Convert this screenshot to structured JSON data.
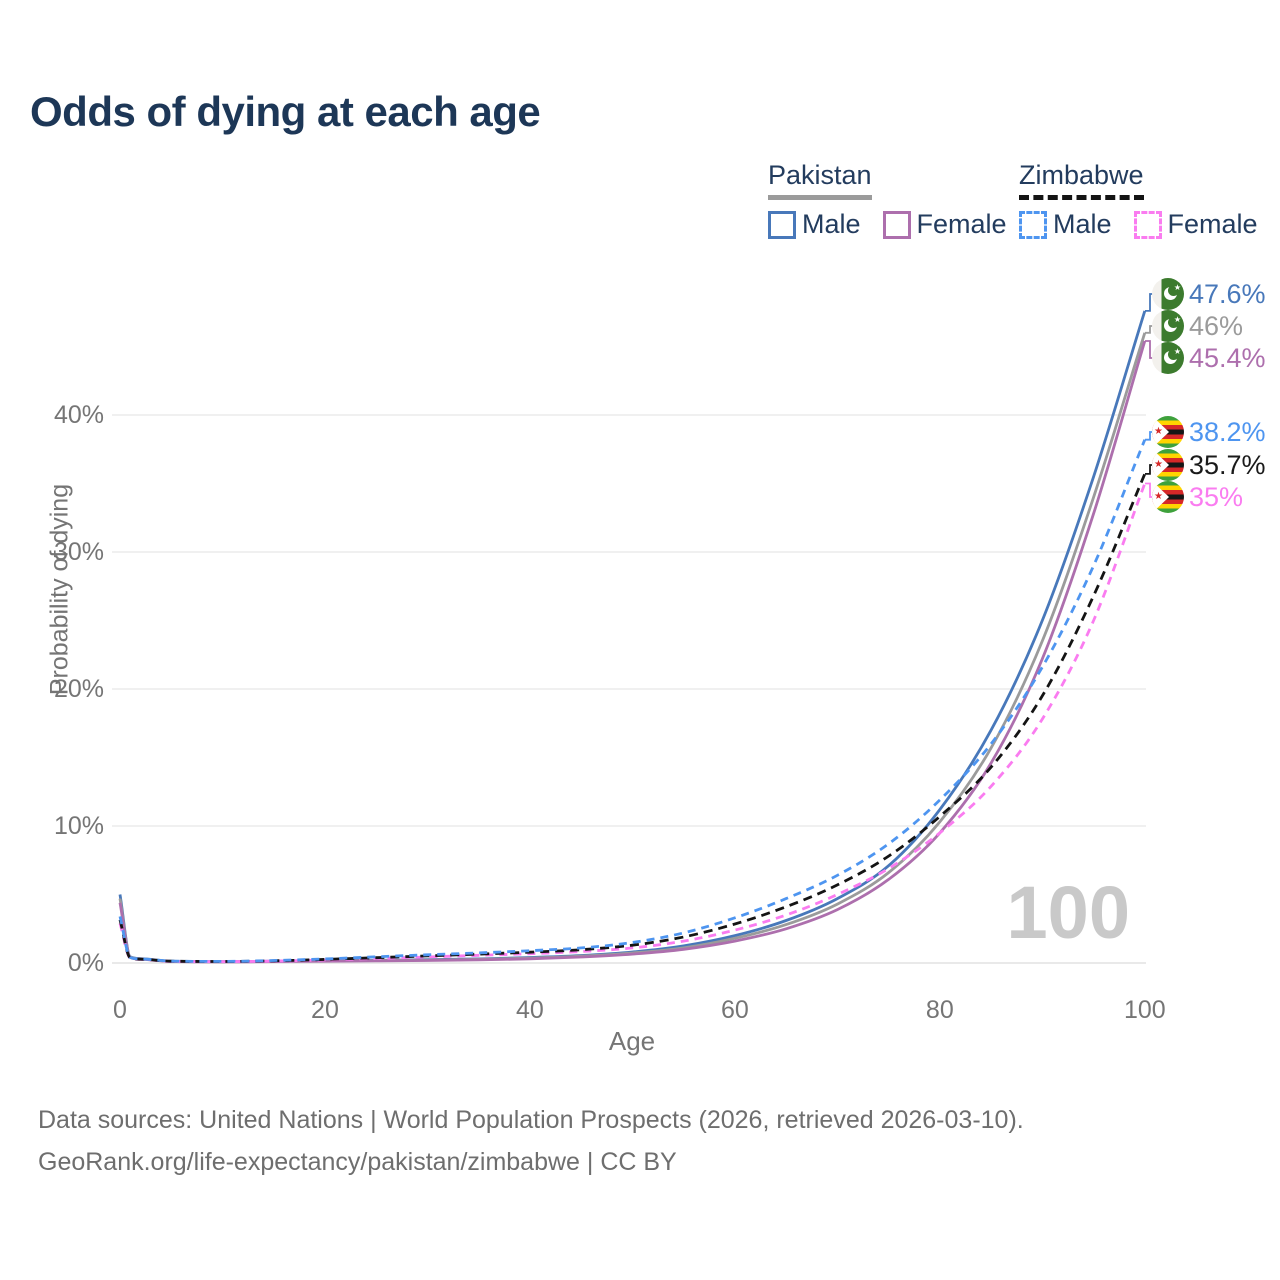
{
  "title": "Odds of dying at each age",
  "legend": {
    "groups": [
      {
        "label": "Pakistan",
        "line_style": "solid",
        "color": "#9b9b9b",
        "items": [
          {
            "label": "Male",
            "color": "#4878ba"
          },
          {
            "label": "Female",
            "color": "#ad6fad"
          }
        ]
      },
      {
        "label": "Zimbabwe",
        "line_style": "dashed",
        "color": "#141414",
        "items": [
          {
            "label": "Male",
            "color": "#4e95f0"
          },
          {
            "label": "Female",
            "color": "#fa7cf0"
          }
        ]
      }
    ]
  },
  "axes": {
    "x": {
      "label": "Age",
      "tick_labels": [
        "0",
        "20",
        "40",
        "60",
        "80",
        "100"
      ],
      "range": [
        0,
        100
      ]
    },
    "y": {
      "label": "Probability of dying",
      "tick_labels": [
        "0%",
        "10%",
        "20%",
        "30%",
        "40%"
      ],
      "range": [
        0,
        48
      ]
    }
  },
  "watermark": "100",
  "end_labels": [
    {
      "text": "47.6%",
      "series": "Pakistan Male",
      "flag": "pakistan",
      "color": "#4878ba"
    },
    {
      "text": "46%",
      "series": "Pakistan Both sexes",
      "flag": "pakistan",
      "color": "#9b9b9b"
    },
    {
      "text": "45.4%",
      "series": "Pakistan Female",
      "flag": "pakistan",
      "color": "#ad6fad"
    },
    {
      "text": "38.2%",
      "series": "Zimbabwe Male",
      "flag": "zimbabwe",
      "color": "#4e95f0"
    },
    {
      "text": "35.7%",
      "series": "Zimbabwe Both sexes",
      "flag": "zimbabwe",
      "color": "#1a1a1a"
    },
    {
      "text": "35%",
      "series": "Zimbabwe Female",
      "flag": "zimbabwe",
      "color": "#fa7cf0"
    }
  ],
  "footer": {
    "line1": "Data sources: United Nations | World Population Prospects (2026, retrieved 2026-03-10).",
    "line2": "GeoRank.org/life-expectancy/pakistan/zimbabwe | CC BY"
  },
  "chart_data": {
    "type": "line",
    "title": "Odds of dying at each age",
    "xlabel": "Age",
    "ylabel": "Probability of dying",
    "x_range": [
      0,
      100
    ],
    "y_range_pct": [
      0,
      48
    ],
    "grid": "horizontal",
    "legend_position": "top-right",
    "ages": [
      0,
      1,
      2,
      5,
      10,
      15,
      20,
      25,
      30,
      35,
      40,
      45,
      50,
      55,
      60,
      65,
      70,
      75,
      80,
      85,
      90,
      95,
      100
    ],
    "series": [
      {
        "name": "Pakistan Male",
        "country": "Pakistan",
        "sex": "Male",
        "style": "solid",
        "color": "#4878ba",
        "end_label": "47.6%",
        "values_pct": [
          5.0,
          0.45,
          0.32,
          0.13,
          0.1,
          0.13,
          0.17,
          0.2,
          0.24,
          0.3,
          0.4,
          0.55,
          0.8,
          1.25,
          2.0,
          3.1,
          4.7,
          7.1,
          11.2,
          17.0,
          25.0,
          35.5,
          47.6
        ]
      },
      {
        "name": "Pakistan Both sexes",
        "country": "Pakistan",
        "sex": "Both",
        "style": "solid",
        "color": "#9b9b9b",
        "end_label": "46%",
        "values_pct": [
          4.7,
          0.42,
          0.3,
          0.12,
          0.09,
          0.12,
          0.15,
          0.18,
          0.21,
          0.27,
          0.36,
          0.5,
          0.73,
          1.1,
          1.8,
          2.8,
          4.3,
          6.6,
          10.3,
          15.7,
          23.5,
          34.0,
          46.0
        ]
      },
      {
        "name": "Pakistan Female",
        "country": "Pakistan",
        "sex": "Female",
        "style": "solid",
        "color": "#ad6fad",
        "end_label": "45.4%",
        "values_pct": [
          4.4,
          0.4,
          0.28,
          0.11,
          0.08,
          0.1,
          0.13,
          0.15,
          0.18,
          0.23,
          0.31,
          0.44,
          0.65,
          1.0,
          1.6,
          2.5,
          3.9,
          6.1,
          9.5,
          14.6,
          22.2,
          32.8,
          45.4
        ]
      },
      {
        "name": "Zimbabwe Male",
        "country": "Zimbabwe",
        "sex": "Male",
        "style": "dashed",
        "color": "#4e95f0",
        "end_label": "38.2%",
        "values_pct": [
          3.4,
          0.4,
          0.3,
          0.14,
          0.12,
          0.18,
          0.3,
          0.45,
          0.6,
          0.74,
          0.9,
          1.1,
          1.5,
          2.2,
          3.3,
          4.7,
          6.4,
          8.7,
          11.9,
          16.0,
          21.6,
          29.0,
          38.2
        ]
      },
      {
        "name": "Zimbabwe Both sexes",
        "country": "Zimbabwe",
        "sex": "Both",
        "style": "dashed",
        "color": "#141414",
        "end_label": "35.7%",
        "values_pct": [
          3.15,
          0.38,
          0.28,
          0.13,
          0.11,
          0.16,
          0.26,
          0.39,
          0.52,
          0.65,
          0.79,
          0.97,
          1.3,
          1.9,
          2.85,
          4.1,
          5.7,
          7.8,
          10.7,
          14.3,
          19.5,
          26.8,
          35.7
        ]
      },
      {
        "name": "Zimbabwe Female",
        "country": "Zimbabwe",
        "sex": "Female",
        "style": "dashed",
        "color": "#fa7cf0",
        "end_label": "35%",
        "values_pct": [
          2.9,
          0.36,
          0.26,
          0.12,
          0.1,
          0.14,
          0.22,
          0.33,
          0.44,
          0.56,
          0.68,
          0.84,
          1.1,
          1.6,
          2.4,
          3.5,
          5.0,
          6.9,
          9.5,
          12.9,
          17.8,
          25.0,
          35.0
        ]
      }
    ]
  }
}
